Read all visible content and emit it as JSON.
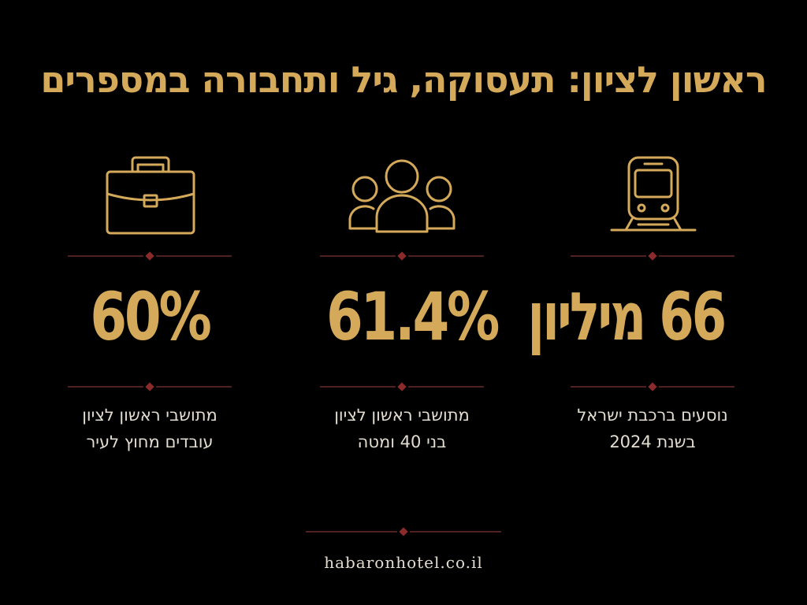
{
  "title": "ראשון לציון: תעסוקה, גיל ותחבורה במספרים",
  "colors": {
    "background": "#000000",
    "gold": "#d4a95a",
    "divider_line": "#6b2c2c",
    "divider_diamond": "#8b2a2a",
    "text_light": "#e3dcd0"
  },
  "stats": [
    {
      "icon": "briefcase-icon",
      "value": "60%",
      "line1": "מתושבי ראשון לציון",
      "line2": "עובדים מחוץ לעיר"
    },
    {
      "icon": "people-group-icon",
      "value": "61.4%",
      "line1": "מתושבי ראשון לציון",
      "line2": "בני 40 ומטה"
    },
    {
      "icon": "train-icon",
      "value": "66 מיליון",
      "line1": "נוסעים ברכבת ישראל",
      "line2": "בשנת 2024"
    }
  ],
  "footer": {
    "website": "habaronhotel.co.il"
  }
}
